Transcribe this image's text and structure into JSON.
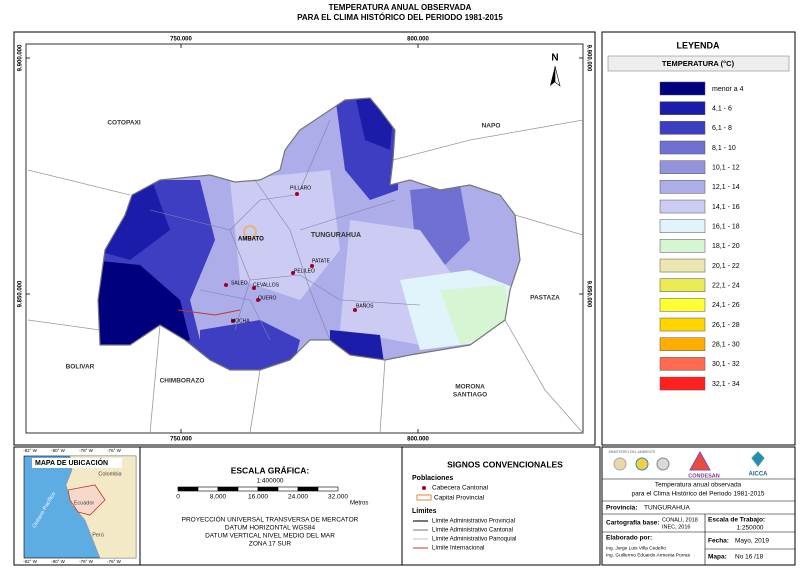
{
  "title": [
    "TEMPERATURA ANUAL OBSERVADA",
    "PARA EL CLIMA HISTÓRICO DEL PERIODO 1981-2015"
  ],
  "map": {
    "coords_top": [
      "750.000",
      "800.000"
    ],
    "coords_bottom": [
      "750.000",
      "800.000"
    ],
    "coords_left": [
      "9.900.000",
      "9.850.000"
    ],
    "coords_right": [
      "9.900.000",
      "9.850.000"
    ],
    "north": "N",
    "province": "TUNGURAHUA",
    "regions": [
      [
        "COTOPAXI"
      ],
      [
        "NAPO"
      ],
      [
        "PASTAZA"
      ],
      [
        "BOLIVAR"
      ],
      [
        "CHIMBORAZO"
      ],
      [
        "MORONA",
        "SANTIAGO"
      ]
    ],
    "towns": [
      {
        "name": "PILLARO",
        "capital": false
      },
      {
        "name": "AMBATO",
        "capital": true
      },
      {
        "name": "PATATE",
        "capital": false
      },
      {
        "name": "PELILEO",
        "capital": false
      },
      {
        "name": "SALEO",
        "capital": false
      },
      {
        "name": "CEVALLOS",
        "capital": false
      },
      {
        "name": "QUERO",
        "capital": false
      },
      {
        "name": "MOCHA",
        "capital": false
      },
      {
        "name": "BAÑOS",
        "capital": false
      }
    ]
  },
  "legend": {
    "title": "LEYENDA",
    "subtitle": "TEMPERATURA (°C)",
    "items": [
      {
        "label": "menor a 4",
        "color": "#00007f"
      },
      {
        "label": "4,1 - 6",
        "color": "#1c1caa"
      },
      {
        "label": "6,1 - 8",
        "color": "#3e3ec2"
      },
      {
        "label": "8,1 - 10",
        "color": "#7070d2"
      },
      {
        "label": "10,1 - 12",
        "color": "#9494de"
      },
      {
        "label": "12,1 - 14",
        "color": "#adadea"
      },
      {
        "label": "14,1 - 16",
        "color": "#cbcbf3"
      },
      {
        "label": "16,1 - 18",
        "color": "#e2f4fb"
      },
      {
        "label": "18,1 - 20",
        "color": "#d6f5d2"
      },
      {
        "label": "20,1 - 22",
        "color": "#ece6b0"
      },
      {
        "label": "22,1 - 24",
        "color": "#ebeb55"
      },
      {
        "label": "24,1 - 26",
        "color": "#ffff33"
      },
      {
        "label": "26,1 - 28",
        "color": "#ffd500"
      },
      {
        "label": "28,1 - 30",
        "color": "#ffae00"
      },
      {
        "label": "30,1 - 32",
        "color": "#ff6a50"
      },
      {
        "label": "32,1 - 34",
        "color": "#ff2020"
      }
    ]
  },
  "location_map": {
    "title": "MAPA DE UBICACIÓN",
    "ticks_top": [
      "-82° W",
      "-80° W",
      "-78° W",
      "-76° W"
    ],
    "ticks_bottom": [
      "-82° W",
      "-80° W",
      "-78° W",
      "-76° W"
    ],
    "countries": [
      "Colombia",
      "Ecuador",
      "Perú"
    ],
    "ocean": "Océano Pacífico"
  },
  "scale": {
    "title": "ESCALA GRÁFICA:",
    "ratio": "1:400000",
    "ticks": [
      "0",
      "8.000",
      "16.000",
      "24.000",
      "32.000"
    ],
    "unit": "Metros",
    "projection": [
      "PROYECCIÓN UNIVERSAL TRANSVERSA DE MERCATOR",
      "DATUM HORIZONTAL WGS84",
      "DATUM VERTICAL NIVEL MEDIO DEL MAR",
      "ZONA 17 SUR"
    ]
  },
  "symbols": {
    "title": "SIGNOS CONVENCIONALES",
    "populations_title": "Poblaciones",
    "populations": [
      "Cabecera Cantonal",
      "Capital Provincial"
    ],
    "limits_title": "Límites",
    "limits": [
      "Límite Administrativo Provincial",
      "Límite Administrativo Cantonal",
      "Límite Administrativo Parroquial",
      "Límite Internacional"
    ]
  },
  "info": {
    "logos": [
      "MINISTERIO DEL AMBIENTE",
      "CONDESAN",
      "AICCA"
    ],
    "title": [
      "Temperatura anual observada",
      "para el Clima Histórico del Periodo 1981-2015"
    ],
    "province_label": "Provincia:",
    "province": "TUNGURAHUA",
    "base_label": "Cartografía base:",
    "base": [
      "CONALI, 2018",
      "INEC, 2016"
    ],
    "work_scale_label": "Escala de Trabajo:",
    "work_scale": "1:250000",
    "author_label": "Elaborado por:",
    "authors": [
      "Ing. Jorge Luis Villa Cedeño",
      "Ing. Guillermo Eduardo Armenta Porras"
    ],
    "date_label": "Fecha:",
    "date": "Mayo, 2019",
    "map_label": "Mapa:",
    "map_number": "No 16 /18"
  }
}
